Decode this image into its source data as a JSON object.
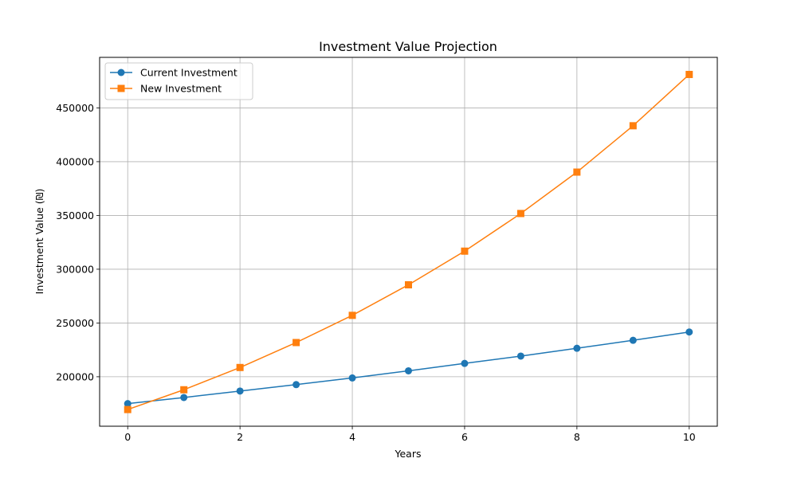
{
  "chart_data": {
    "type": "line",
    "title": "Investment Value Projection",
    "xlabel": "Years",
    "ylabel": "Investment Value (₪)",
    "x": [
      0,
      1,
      2,
      3,
      4,
      5,
      6,
      7,
      8,
      9,
      10
    ],
    "series": [
      {
        "name": "Current Investment",
        "color": "#1f77b4",
        "marker": "circle",
        "values": [
          175000,
          180700,
          186700,
          192700,
          198900,
          205500,
          212400,
          219200,
          226500,
          233900,
          241600
        ]
      },
      {
        "name": "New Investment",
        "color": "#ff7f0e",
        "marker": "square",
        "values": [
          169500,
          187900,
          208600,
          231800,
          257100,
          285500,
          316800,
          351800,
          390300,
          433400,
          481100
        ]
      }
    ],
    "xlim": [
      -0.5,
      10.5
    ],
    "ylim": [
      154000,
      497000
    ],
    "x_ticks": [
      "0",
      "2",
      "4",
      "6",
      "8",
      "10"
    ],
    "y_ticks": [
      "200000",
      "250000",
      "300000",
      "350000",
      "400000",
      "450000"
    ],
    "grid": true,
    "legend_position": "top-left"
  }
}
